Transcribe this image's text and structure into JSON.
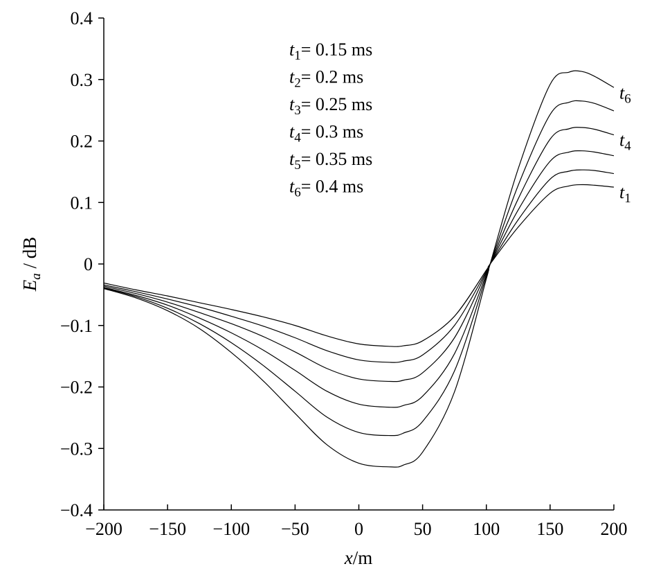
{
  "chart_data": {
    "type": "line",
    "title": "",
    "xlabel": {
      "var": "x",
      "unit": "/m"
    },
    "ylabel": {
      "var": "E",
      "sub": "a",
      "unit": " / dB"
    },
    "xlim": [
      -200,
      200
    ],
    "ylim": [
      -0.4,
      0.4
    ],
    "x_ticks": [
      {
        "value": -200,
        "label": "−200"
      },
      {
        "value": -150,
        "label": "−150"
      },
      {
        "value": -100,
        "label": "−100"
      },
      {
        "value": -50,
        "label": "−50"
      },
      {
        "value": 0,
        "label": "0"
      },
      {
        "value": 50,
        "label": "50"
      },
      {
        "value": 100,
        "label": "100"
      },
      {
        "value": 150,
        "label": "150"
      },
      {
        "value": 200,
        "label": "200"
      }
    ],
    "y_ticks": [
      {
        "value": 0.4,
        "label": "0.4"
      },
      {
        "value": 0.3,
        "label": "0.3"
      },
      {
        "value": 0.2,
        "label": "0.2"
      },
      {
        "value": 0.1,
        "label": "0.1"
      },
      {
        "value": 0,
        "label": "0"
      },
      {
        "value": -0.1,
        "label": "−0.1"
      },
      {
        "value": -0.2,
        "label": "−0.2"
      },
      {
        "value": -0.3,
        "label": "−0.3"
      },
      {
        "value": -0.4,
        "label": "−0.4"
      }
    ],
    "grid": false,
    "legend_position": "top-center",
    "legend": [
      {
        "var": "t",
        "sub": "1",
        "text": "= 0.15 ms"
      },
      {
        "var": "t",
        "sub": "2",
        "text": "= 0.2 ms"
      },
      {
        "var": "t",
        "sub": "3",
        "text": "= 0.25 ms"
      },
      {
        "var": "t",
        "sub": "4",
        "text": "= 0.3 ms"
      },
      {
        "var": "t",
        "sub": "5",
        "text": "= 0.35 ms"
      },
      {
        "var": "t",
        "sub": "6",
        "text": "= 0.4 ms"
      }
    ],
    "x": [
      -200,
      -175,
      -150,
      -125,
      -100,
      -75,
      -50,
      -25,
      0,
      25,
      35,
      50,
      75,
      100,
      103,
      125,
      150,
      165,
      175,
      185,
      200
    ],
    "series": [
      {
        "name": "t1",
        "label": "1",
        "values": [
          -0.031,
          -0.042,
          -0.052,
          -0.063,
          -0.074,
          -0.086,
          -0.1,
          -0.117,
          -0.13,
          -0.134,
          -0.133,
          -0.125,
          -0.085,
          -0.01,
          0.0,
          0.06,
          0.115,
          0.127,
          0.129,
          0.128,
          0.125
        ]
      },
      {
        "name": "t2",
        "values": [
          -0.034,
          -0.045,
          -0.057,
          -0.07,
          -0.085,
          -0.101,
          -0.12,
          -0.141,
          -0.156,
          -0.16,
          -0.158,
          -0.148,
          -0.1,
          -0.012,
          0.0,
          0.072,
          0.138,
          0.151,
          0.153,
          0.152,
          0.147
        ]
      },
      {
        "name": "t3",
        "values": [
          -0.036,
          -0.048,
          -0.062,
          -0.079,
          -0.097,
          -0.118,
          -0.143,
          -0.17,
          -0.187,
          -0.191,
          -0.189,
          -0.177,
          -0.12,
          -0.014,
          0.0,
          0.088,
          0.167,
          0.182,
          0.184,
          0.182,
          0.176
        ]
      },
      {
        "name": "t4",
        "label": "4",
        "values": [
          -0.038,
          -0.051,
          -0.067,
          -0.088,
          -0.112,
          -0.14,
          -0.173,
          -0.207,
          -0.228,
          -0.233,
          -0.23,
          -0.215,
          -0.146,
          -0.017,
          0.0,
          0.106,
          0.203,
          0.22,
          0.222,
          0.219,
          0.21
        ]
      },
      {
        "name": "t5",
        "values": [
          -0.039,
          -0.053,
          -0.072,
          -0.097,
          -0.128,
          -0.165,
          -0.207,
          -0.249,
          -0.274,
          -0.279,
          -0.275,
          -0.256,
          -0.174,
          -0.02,
          0.0,
          0.128,
          0.243,
          0.263,
          0.265,
          0.261,
          0.249
        ]
      },
      {
        "name": "t6",
        "label": "6",
        "values": [
          -0.04,
          -0.055,
          -0.076,
          -0.105,
          -0.144,
          -0.19,
          -0.243,
          -0.294,
          -0.324,
          -0.33,
          -0.327,
          -0.306,
          -0.208,
          -0.024,
          0.0,
          0.155,
          0.292,
          0.312,
          0.313,
          0.305,
          0.287
        ]
      }
    ]
  }
}
